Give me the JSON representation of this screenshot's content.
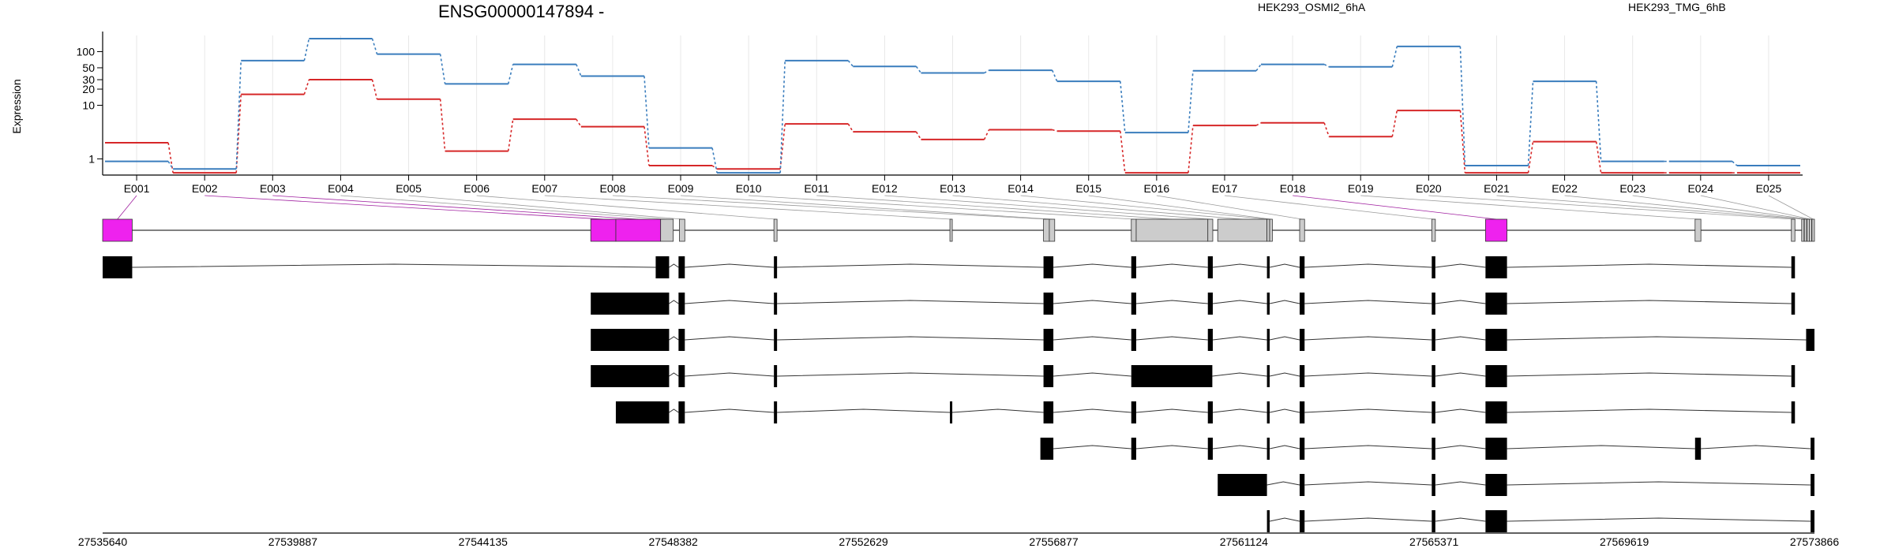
{
  "chart_data": {
    "type": "line",
    "title": "ENSG00000147894 -",
    "ylabel": "Expression",
    "y_scale": "log",
    "ylim": [
      0.5,
      200
    ],
    "y_ticks": [
      {
        "value": 1,
        "label": "1"
      },
      {
        "value": 10,
        "label": "10"
      },
      {
        "value": 20,
        "label": "20"
      },
      {
        "value": 30,
        "label": "30"
      },
      {
        "value": 50,
        "label": "50"
      },
      {
        "value": 100,
        "label": "100"
      }
    ],
    "grid": true,
    "legend_position": "top",
    "categories": [
      "E001",
      "E002",
      "E003",
      "E004",
      "E005",
      "E006",
      "E007",
      "E008",
      "E009",
      "E010",
      "E011",
      "E012",
      "E013",
      "E014",
      "E015",
      "E016",
      "E017",
      "E018",
      "E019",
      "E020",
      "E021",
      "E022",
      "E023",
      "E024",
      "E025"
    ],
    "series": [
      {
        "name": "HEK293_OSMI2_6hA",
        "color": "#d62728",
        "values": [
          2.0,
          0.55,
          16,
          30,
          13,
          1.4,
          5.5,
          4.0,
          0.75,
          0.65,
          4.5,
          3.2,
          2.3,
          3.5,
          3.3,
          0.55,
          4.2,
          4.7,
          2.6,
          8.0,
          0.55,
          2.1,
          0.55,
          0.55,
          0.55
        ]
      },
      {
        "name": "HEK293_TMG_6hB",
        "color": "#3a7dbd",
        "values": [
          0.9,
          0.65,
          68,
          175,
          90,
          25,
          58,
          35,
          1.6,
          0.55,
          68,
          53,
          40,
          45,
          28,
          3.1,
          44,
          58,
          52,
          125,
          0.75,
          28,
          0.9,
          0.9,
          0.75
        ]
      }
    ],
    "gene_model": {
      "genomic_start": 27535640,
      "genomic_end": 27573866,
      "coordinate_ticks": [
        "27535640",
        "27539887",
        "27544135",
        "27548382",
        "27552629",
        "27556877",
        "27561124",
        "27565371",
        "27569619",
        "27573866"
      ],
      "exon_color_highlight": "#ee22ee",
      "exon_color_default": "#cccccc",
      "exon_bins": [
        {
          "id": "E001",
          "start": 27535640,
          "end": 27536300,
          "highlight": true
        },
        {
          "id": "E002",
          "start": 27546540,
          "end": 27547100,
          "highlight": true
        },
        {
          "id": "E003",
          "start": 27547100,
          "end": 27548100,
          "highlight": true
        },
        {
          "id": "E004",
          "start": 27548100,
          "end": 27548382,
          "highlight": false
        },
        {
          "id": "E005",
          "start": 27548520,
          "end": 27548640,
          "highlight": false
        },
        {
          "id": "E006",
          "start": 27550630,
          "end": 27550700,
          "highlight": false
        },
        {
          "id": "E007",
          "start": 27554560,
          "end": 27554610,
          "highlight": false
        },
        {
          "id": "E008",
          "start": 27556650,
          "end": 27556780,
          "highlight": false
        },
        {
          "id": "E009",
          "start": 27556780,
          "end": 27556900,
          "highlight": false
        },
        {
          "id": "E010",
          "start": 27558610,
          "end": 27558720,
          "highlight": false
        },
        {
          "id": "E011",
          "start": 27558720,
          "end": 27560320,
          "highlight": false
        },
        {
          "id": "E012",
          "start": 27560320,
          "end": 27560430,
          "highlight": false
        },
        {
          "id": "E013",
          "start": 27560540,
          "end": 27561640,
          "highlight": false
        },
        {
          "id": "E014",
          "start": 27561640,
          "end": 27561700,
          "highlight": false
        },
        {
          "id": "E015",
          "start": 27561700,
          "end": 27561760,
          "highlight": false
        },
        {
          "id": "E016",
          "start": 27562370,
          "end": 27562480,
          "highlight": false
        },
        {
          "id": "E017",
          "start": 27565320,
          "end": 27565400,
          "highlight": false
        },
        {
          "id": "E018",
          "start": 27566520,
          "end": 27567000,
          "highlight": true
        },
        {
          "id": "E019",
          "start": 27571200,
          "end": 27571330,
          "highlight": false
        },
        {
          "id": "E020",
          "start": 27573350,
          "end": 27573430,
          "highlight": false
        },
        {
          "id": "E021",
          "start": 27573580,
          "end": 27573620,
          "highlight": false
        },
        {
          "id": "E022",
          "start": 27573640,
          "end": 27573690,
          "highlight": false
        },
        {
          "id": "E023",
          "start": 27573700,
          "end": 27573740,
          "highlight": false
        },
        {
          "id": "E024",
          "start": 27573750,
          "end": 27573800,
          "highlight": false
        },
        {
          "id": "E025",
          "start": 27573810,
          "end": 27573866,
          "highlight": false
        }
      ],
      "transcripts": [
        [
          [
            27535640,
            27536300
          ],
          [
            27547990,
            27548290
          ],
          [
            27548500,
            27548640
          ],
          [
            27550630,
            27550700
          ],
          [
            27556650,
            27556870
          ],
          [
            27558610,
            27558720
          ],
          [
            27560320,
            27560430
          ],
          [
            27561640,
            27561700
          ],
          [
            27562370,
            27562480
          ],
          [
            27565320,
            27565400
          ],
          [
            27566520,
            27567000
          ],
          [
            27573350,
            27573430
          ]
        ],
        [
          [
            27546540,
            27548290
          ],
          [
            27548500,
            27548640
          ],
          [
            27550630,
            27550700
          ],
          [
            27556650,
            27556870
          ],
          [
            27558610,
            27558720
          ],
          [
            27560320,
            27560430
          ],
          [
            27561640,
            27561700
          ],
          [
            27562370,
            27562480
          ],
          [
            27565320,
            27565400
          ],
          [
            27566520,
            27567000
          ],
          [
            27573350,
            27573430
          ]
        ],
        [
          [
            27546540,
            27548290
          ],
          [
            27548500,
            27548640
          ],
          [
            27550630,
            27550700
          ],
          [
            27556650,
            27556870
          ],
          [
            27558610,
            27558720
          ],
          [
            27560320,
            27560430
          ],
          [
            27561640,
            27561700
          ],
          [
            27562370,
            27562480
          ],
          [
            27565320,
            27565400
          ],
          [
            27566520,
            27567000
          ],
          [
            27573680,
            27573866
          ]
        ],
        [
          [
            27546540,
            27548290
          ],
          [
            27548500,
            27548640
          ],
          [
            27550630,
            27550700
          ],
          [
            27556650,
            27556870
          ],
          [
            27558610,
            27560420
          ],
          [
            27561640,
            27561700
          ],
          [
            27562370,
            27562480
          ],
          [
            27565320,
            27565400
          ],
          [
            27566520,
            27567000
          ],
          [
            27573350,
            27573430
          ]
        ],
        [
          [
            27547100,
            27548290
          ],
          [
            27548500,
            27548640
          ],
          [
            27550630,
            27550700
          ],
          [
            27554560,
            27554610
          ],
          [
            27556650,
            27556870
          ],
          [
            27558610,
            27558720
          ],
          [
            27560320,
            27560430
          ],
          [
            27561640,
            27561700
          ],
          [
            27562370,
            27562480
          ],
          [
            27565320,
            27565400
          ],
          [
            27566520,
            27567000
          ],
          [
            27573350,
            27573430
          ]
        ],
        [
          [
            27556580,
            27556870
          ],
          [
            27558610,
            27558720
          ],
          [
            27560320,
            27560430
          ],
          [
            27561640,
            27561700
          ],
          [
            27562370,
            27562480
          ],
          [
            27565320,
            27565400
          ],
          [
            27566520,
            27567000
          ],
          [
            27571200,
            27571330
          ],
          [
            27573780,
            27573866
          ]
        ],
        [
          [
            27560540,
            27561640
          ],
          [
            27562370,
            27562480
          ],
          [
            27565320,
            27565400
          ],
          [
            27566520,
            27567000
          ],
          [
            27573780,
            27573866
          ]
        ],
        [
          [
            27561640,
            27561700
          ],
          [
            27562370,
            27562480
          ],
          [
            27565320,
            27565400
          ],
          [
            27566520,
            27567000
          ],
          [
            27573780,
            27573866
          ]
        ]
      ]
    }
  }
}
